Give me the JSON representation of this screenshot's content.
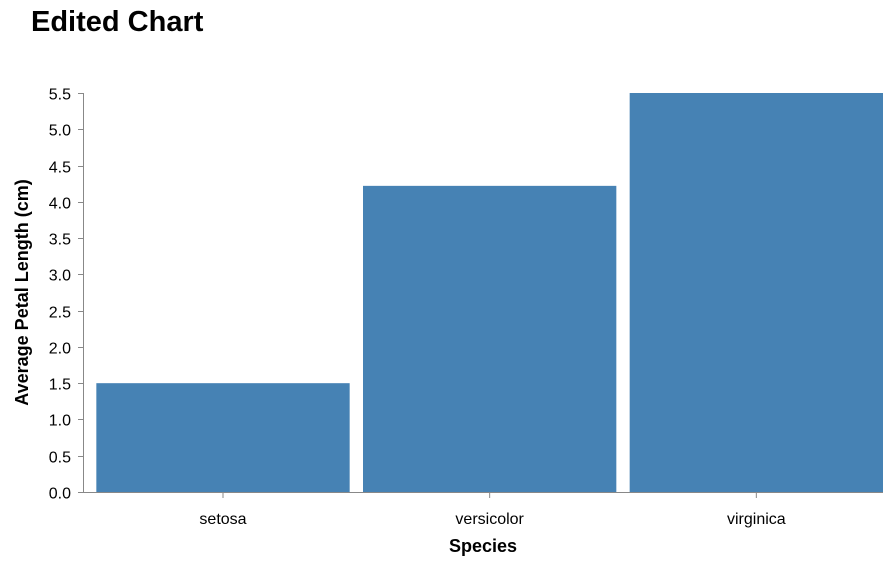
{
  "chart_data": {
    "type": "bar",
    "title": "Edited Chart",
    "xlabel": "Species",
    "ylabel": "Average Petal Length (cm)",
    "categories": [
      "setosa",
      "versicolor",
      "virginica"
    ],
    "values": [
      1.5,
      4.22,
      5.5
    ],
    "ylim": [
      0,
      5.5
    ],
    "yticks": [
      "0.0",
      "0.5",
      "1.0",
      "1.5",
      "2.0",
      "2.5",
      "3.0",
      "3.5",
      "4.0",
      "4.5",
      "5.0",
      "5.5"
    ],
    "grid": false,
    "legend": "none",
    "colors": {
      "bar": "#4682b4",
      "axis": "#888888"
    }
  }
}
